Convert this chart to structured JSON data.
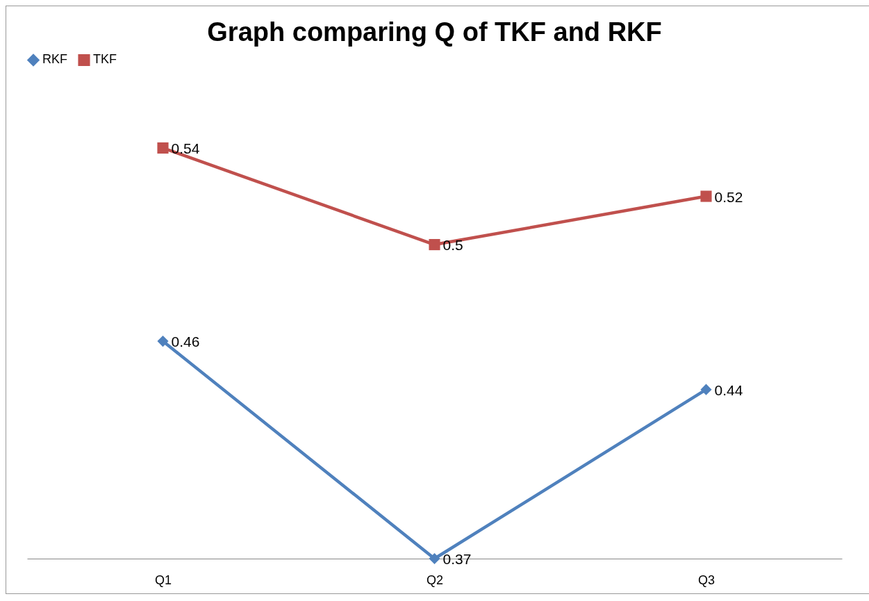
{
  "chart_data": {
    "type": "line",
    "title": "Graph comparing Q of TKF and RKF",
    "categories": [
      "Q1",
      "Q2",
      "Q3"
    ],
    "series": [
      {
        "name": "RKF",
        "color": "#4f81bd",
        "marker": "diamond",
        "values": [
          0.46,
          0.37,
          0.44
        ]
      },
      {
        "name": "TKF",
        "color": "#c0504d",
        "marker": "square",
        "values": [
          0.54,
          0.5,
          0.52
        ]
      }
    ],
    "data_labels": true,
    "grid": false,
    "legend": "top",
    "line_style": "solid",
    "tick_labels": "x"
  }
}
